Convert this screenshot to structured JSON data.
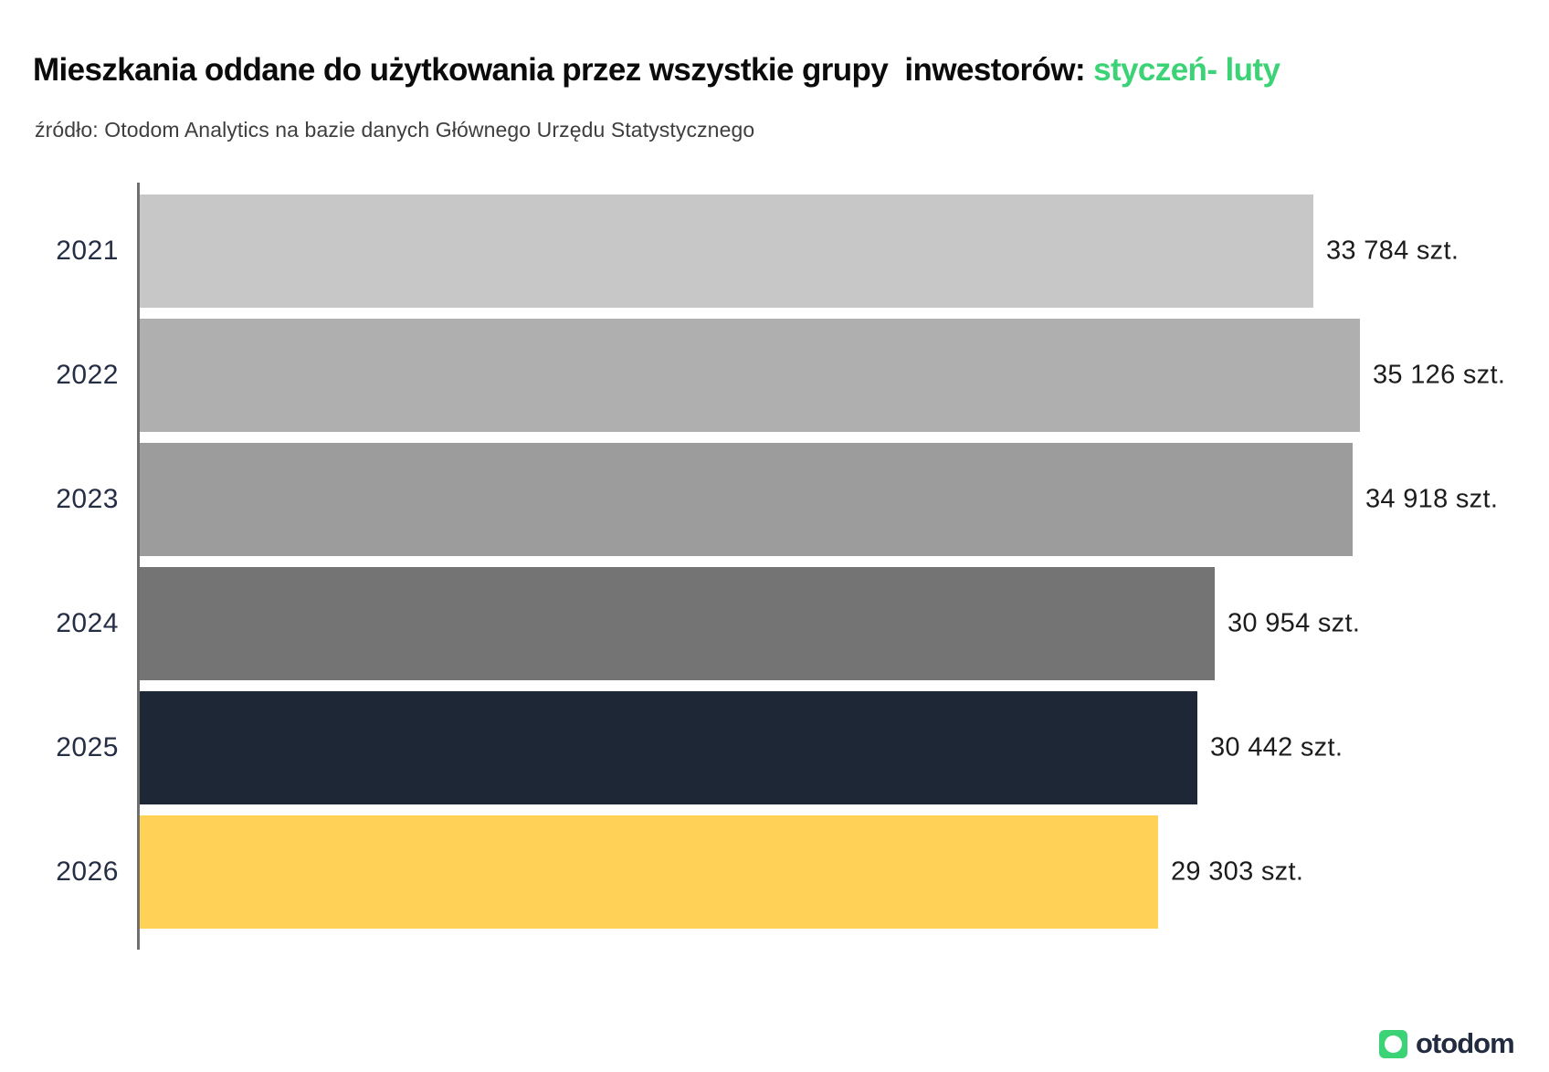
{
  "title": {
    "main": "Mieszkania oddane do użytkowania przez wszystkie grupy  inwestorów: ",
    "highlight": "styczeń- luty"
  },
  "source": "źródło: Otodom Analytics na bazie danych Głównego Urzędu Statystycznego",
  "colors": {
    "accent_green": "#3cd276",
    "year_label_navy": "#252e45",
    "value_text": "#1c1c1c",
    "axis_gray": "#6f6f6f",
    "logo_navy": "#222b3f"
  },
  "chart_data": {
    "type": "bar",
    "orientation": "horizontal",
    "title": "Mieszkania oddane do użytkowania przez wszystkie grupy inwestorów: styczeń- luty",
    "source": "źródło: Otodom Analytics na bazie danych Głównego Urzędu Statystycznego",
    "categories": [
      "2021",
      "2022",
      "2023",
      "2024",
      "2025",
      "2026"
    ],
    "values": [
      33784,
      35126,
      34918,
      30954,
      30442,
      29303
    ],
    "value_labels": [
      "33 784 szt.",
      "35 126 szt.",
      "34 918 szt.",
      "30 954 szt.",
      "30 442 szt.",
      "29 303 szt."
    ],
    "unit": "szt.",
    "bar_colors": [
      "#c7c7c7",
      "#afafaf",
      "#9c9c9c",
      "#747474",
      "#1e2736",
      "#ffd156"
    ],
    "xlim": [
      0,
      35126
    ],
    "grid": false,
    "legend": false
  },
  "logo": {
    "text": "otodom"
  }
}
